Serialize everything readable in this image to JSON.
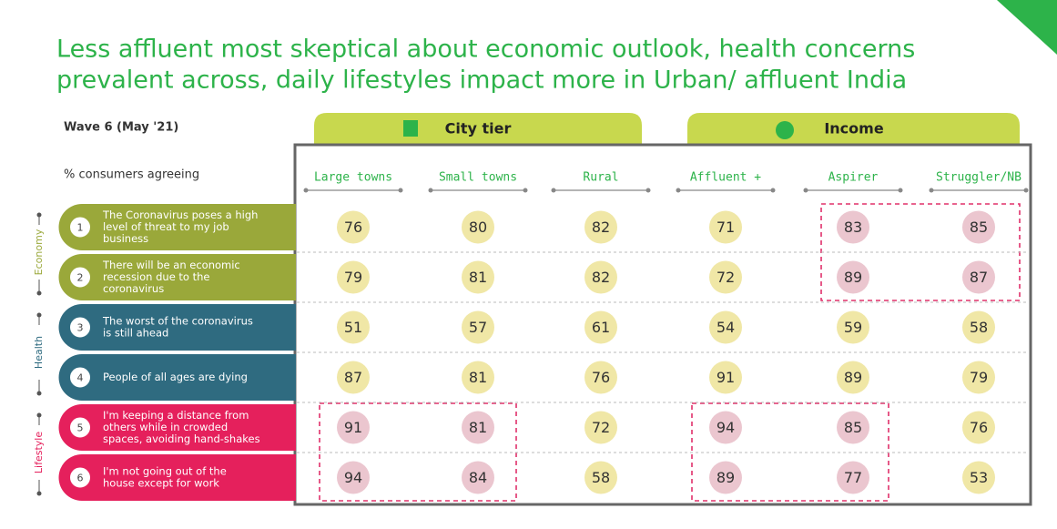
{
  "title": [
    "Less affluent most skeptical about economic outlook, health concerns",
    "prevalent across, daily lifestyles impact more in Urban/ affluent India"
  ],
  "wave": "Wave 6 (May '21)",
  "subtitle": "% consumers agreeing",
  "groups": [
    "City tier",
    "Income"
  ],
  "columns": [
    "Large towns",
    "Small towns",
    "Rural",
    "Affluent +",
    "Aspirer",
    "Struggler/NB"
  ],
  "categories": [
    {
      "name": "Economy",
      "color": "#9aa83a"
    },
    {
      "name": "Health",
      "color": "#2f6b80"
    },
    {
      "name": "Lifestyle",
      "color": "#e5205c"
    }
  ],
  "rows": [
    {
      "number": "1",
      "category": 0,
      "lines": [
        "The Coronavirus poses a high",
        "level of threat to my job",
        "business"
      ],
      "values": [
        "76",
        "80",
        "82",
        "71",
        "83",
        "85"
      ],
      "highlight": [
        false,
        false,
        false,
        false,
        true,
        true
      ]
    },
    {
      "number": "2",
      "category": 0,
      "lines": [
        "There will be an economic",
        "recession due to the",
        "coronavirus"
      ],
      "values": [
        "79",
        "81",
        "82",
        "72",
        "89",
        "87"
      ],
      "highlight": [
        false,
        false,
        false,
        false,
        true,
        true
      ]
    },
    {
      "number": "3",
      "category": 1,
      "lines": [
        "The worst of the coronavirus",
        "is still ahead"
      ],
      "values": [
        "51",
        "57",
        "61",
        "54",
        "59",
        "58"
      ],
      "highlight": [
        false,
        false,
        false,
        false,
        false,
        false
      ]
    },
    {
      "number": "4",
      "category": 1,
      "lines": [
        "People of all ages are dying"
      ],
      "values": [
        "87",
        "81",
        "76",
        "91",
        "89",
        "79"
      ],
      "highlight": [
        false,
        false,
        false,
        false,
        false,
        false
      ]
    },
    {
      "number": "5",
      "category": 2,
      "lines": [
        "I'm keeping a distance from",
        "others while in crowded",
        "spaces, avoiding hand-shakes"
      ],
      "values": [
        "91",
        "81",
        "72",
        "94",
        "85",
        "76"
      ],
      "highlight": [
        true,
        true,
        false,
        true,
        true,
        false
      ]
    },
    {
      "number": "6",
      "category": 2,
      "lines": [
        "I'm not going out of the",
        "house except for work"
      ],
      "values": [
        "94",
        "84",
        "58",
        "89",
        "77",
        "53"
      ],
      "highlight": [
        true,
        true,
        false,
        true,
        true,
        false
      ]
    }
  ],
  "cell_color": "#f0e7a6",
  "highlight_color": "#ebc6cf"
}
